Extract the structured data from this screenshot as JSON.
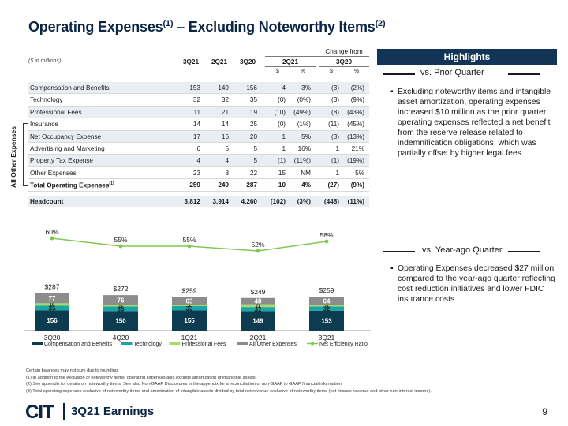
{
  "title": {
    "main": "Operating Expenses",
    "sup1": "(1)",
    "mid": " – Excluding Noteworthy Items",
    "sup2": "(2)"
  },
  "table": {
    "units": "($ in millions)",
    "change_from": "Change from",
    "cols": [
      "3Q21",
      "2Q21",
      "3Q20"
    ],
    "groups": [
      "2Q21",
      "3Q20"
    ],
    "sub": [
      "$",
      "%",
      "$",
      "%"
    ],
    "rows": [
      {
        "label": "Compensation and Benefits",
        "v": [
          "153",
          "149",
          "156",
          "4",
          "3%",
          "(3)",
          "(2%)"
        ]
      },
      {
        "label": "Technology",
        "v": [
          "32",
          "32",
          "35",
          "(0)",
          "(0%)",
          "(3)",
          "(9%)"
        ]
      },
      {
        "label": "Professional Fees",
        "v": [
          "11",
          "21",
          "19",
          "(10)",
          "(49%)",
          "(8)",
          "(43%)"
        ]
      },
      {
        "label": "Insurance",
        "v": [
          "14",
          "14",
          "25",
          "(0)",
          "(1%)",
          "(11)",
          "(45%)"
        ]
      },
      {
        "label": "Net Occupancy Expense",
        "v": [
          "17",
          "16",
          "20",
          "1",
          "5%",
          "(3)",
          "(13%)"
        ]
      },
      {
        "label": "Advertising and Marketing",
        "v": [
          "6",
          "5",
          "5",
          "1",
          "16%",
          "1",
          "21%"
        ]
      },
      {
        "label": "Property Tax Expense",
        "v": [
          "4",
          "4",
          "5",
          "(1)",
          "(11%)",
          "(1)",
          "(19%)"
        ]
      },
      {
        "label": "Other Expenses",
        "v": [
          "23",
          "8",
          "22",
          "15",
          "NM",
          "1",
          "5%"
        ]
      }
    ],
    "total": {
      "label": "Total Operating Expenses",
      "sup": "(1)",
      "v": [
        "259",
        "249",
        "287",
        "10",
        "4%",
        "(27)",
        "(9%)"
      ]
    },
    "headcount": {
      "label": "Headcount",
      "v": [
        "3,812",
        "3,914",
        "4,260",
        "(102)",
        "(3%)",
        "(448)",
        "(11%)"
      ]
    },
    "side_label": "All Other Expenses"
  },
  "highlights": {
    "title": "Highlights",
    "prior_quarter": {
      "label": "vs. Prior Quarter",
      "text": "Excluding noteworthy items and intangible asset amortization, operating expenses increased $10 million as the prior quarter operating expenses reflected a net benefit from the reserve release related to indemnification obligations, which was partially offset by higher legal fees."
    },
    "year_ago": {
      "label": "vs. Year-ago Quarter",
      "text": "Operating Expenses decreased $27 million compared to the year-ago quarter reflecting cost reduction initiatives and lower FDIC insurance costs."
    },
    "bullet_glyph": "▪"
  },
  "chart_data": {
    "type": "bar",
    "stacked": true,
    "categories": [
      "3Q20",
      "4Q20",
      "1Q21",
      "2Q21",
      "3Q21"
    ],
    "series": [
      {
        "name": "Compensation and Benefits",
        "color": "#0d3b4f",
        "values": [
          156,
          150,
          155,
          149,
          153
        ],
        "labels": [
          "156",
          "150",
          "155",
          "149",
          "153"
        ]
      },
      {
        "name": "Technology",
        "color": "#1aa6a6",
        "values": [
          35,
          35,
          33,
          32,
          32
        ],
        "labels": [
          "35",
          "35",
          "33",
          "32",
          "32"
        ]
      },
      {
        "name": "Professional Fees",
        "color": "#a6d96a",
        "values": [
          19,
          11,
          8,
          21,
          11
        ],
        "labels": [
          "19",
          "11",
          "8",
          "21",
          "11"
        ]
      },
      {
        "name": "All Other Expenses",
        "color": "#8c8c8c",
        "values": [
          77,
          76,
          63,
          48,
          64
        ],
        "labels": [
          "77",
          "76",
          "63",
          "48",
          "64"
        ]
      }
    ],
    "totals": [
      "$287",
      "$272",
      "$259",
      "$249",
      "$259"
    ],
    "line": {
      "name": "Net Efficiency Ratio",
      "sup": "(3)",
      "color": "#7ec850",
      "values": [
        60,
        55,
        55,
        52,
        58
      ],
      "labels": [
        "60%",
        "55%",
        "55%",
        "52%",
        "58%"
      ]
    }
  },
  "footnotes": [
    "Certain balances may not sum due to rounding.",
    "(1)   In addition to the exclusion of noteworthy items, operating expenses also exclude amortization of intangible assets.",
    "(2)   See appendix for details on noteworthy items. See also Non-GAAP Disclosures in the appendix for a reconciliation of non-GAAP to GAAP financial information.",
    "(3)   Total operating expenses exclusive of noteworthy items and amortization of intangible assets divided by total net revenue exclusive of noteworthy items (net finance revenue and other non-interest income)."
  ],
  "footer": {
    "logo": "CIT",
    "title": "3Q21 Earnings",
    "page": "9"
  }
}
